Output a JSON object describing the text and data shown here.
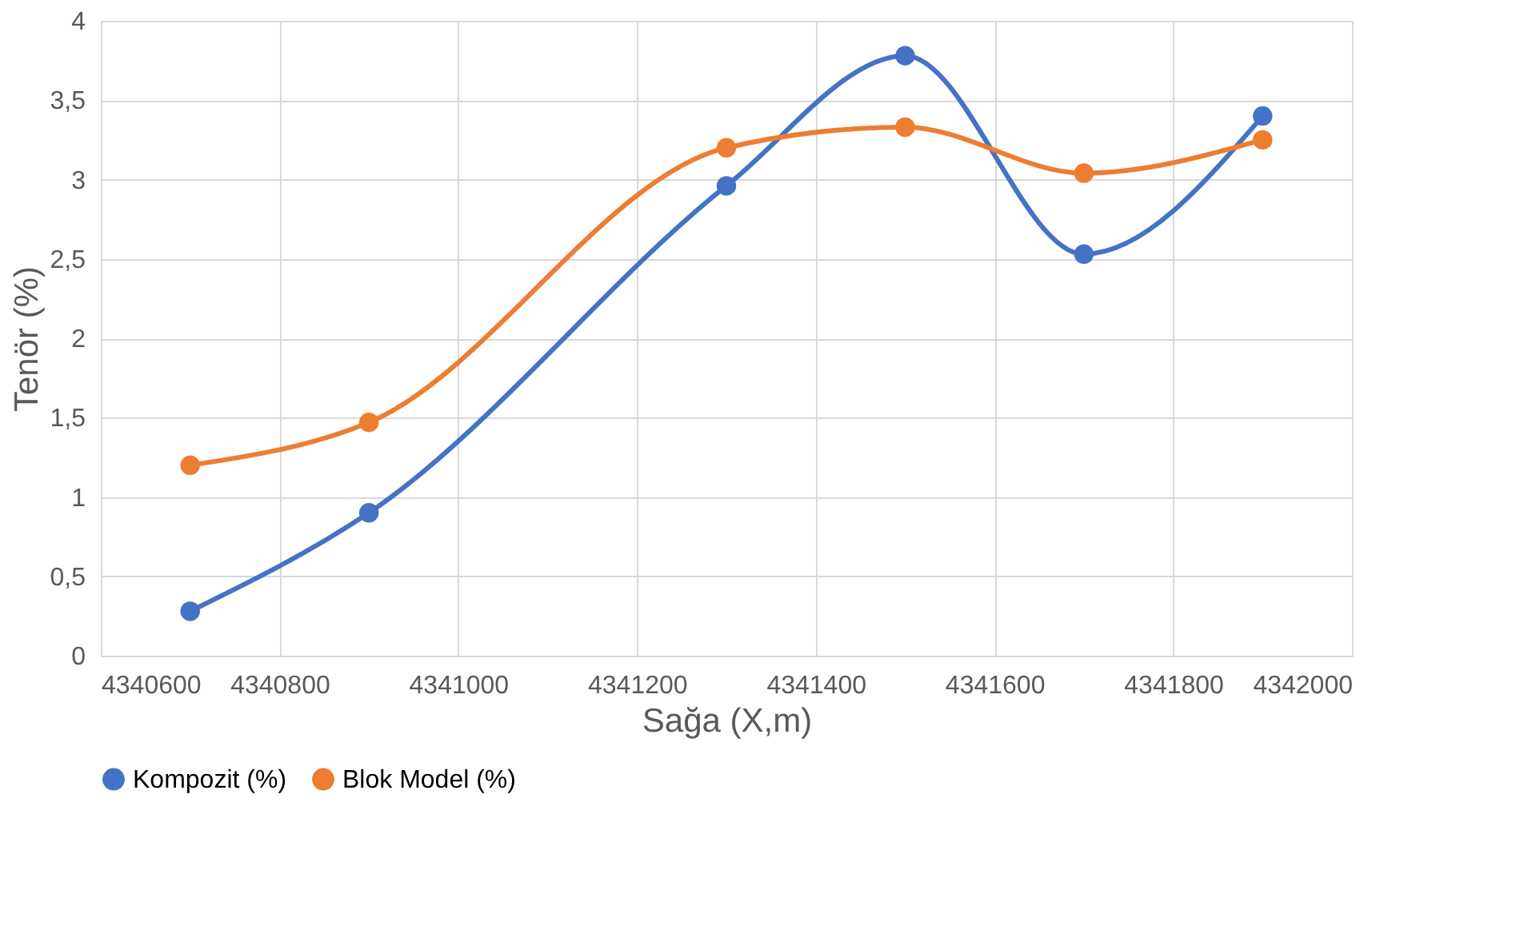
{
  "chart_data": {
    "type": "line",
    "xlabel": "Sağa (X,m)",
    "ylabel": "Tenör (%)",
    "x": [
      4340700,
      4340900,
      4341300,
      4341500,
      4341700,
      4341900
    ],
    "series": [
      {
        "name": "Kompozit (%)",
        "color": "#4472c4",
        "values": [
          0.28,
          0.9,
          2.96,
          3.78,
          2.53,
          3.4
        ]
      },
      {
        "name": "Blok Model (%)",
        "color": "#ed7d31",
        "values": [
          1.2,
          1.47,
          3.2,
          3.33,
          3.04,
          3.25
        ]
      }
    ],
    "xlim": [
      4340600,
      4342000
    ],
    "xticks": [
      4340600,
      4340800,
      4341000,
      4341200,
      4341400,
      4341600,
      4341800,
      4342000
    ],
    "ylim": [
      0,
      4
    ],
    "yticks": [
      0,
      {
        "value": 0.5,
        "label": "0,5"
      },
      1,
      {
        "value": 1.5,
        "label": "1,5"
      },
      2,
      {
        "value": 2.5,
        "label": "2,5"
      },
      3,
      {
        "value": 3.5,
        "label": "3,5"
      },
      4
    ],
    "grid": true,
    "legend": "bottom",
    "marker": "circle",
    "line_style": "solid"
  }
}
